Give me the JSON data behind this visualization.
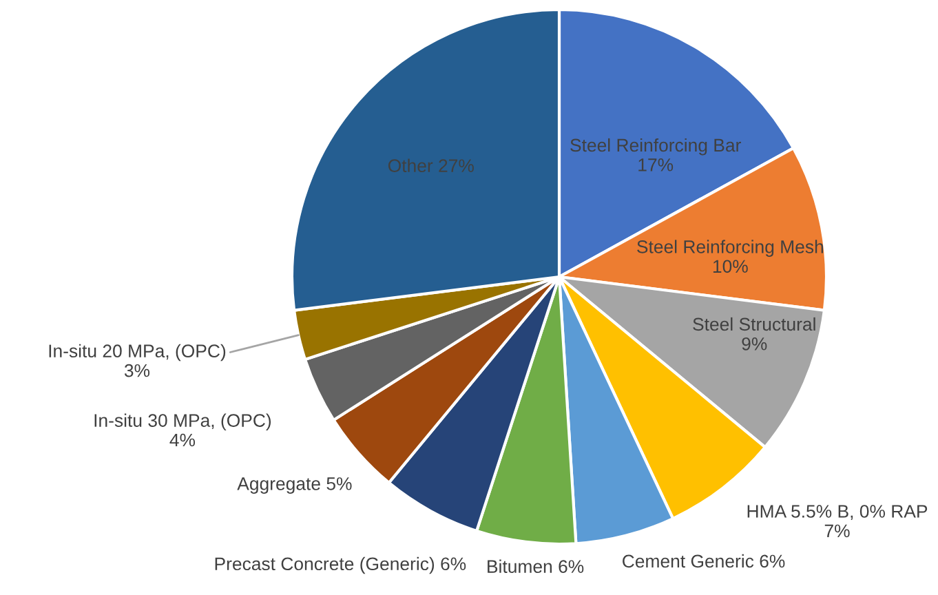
{
  "chart_data": {
    "type": "pie",
    "categories": [
      "Steel Reinforcing Bar",
      "Steel Reinforcing Mesh",
      "Steel Structural",
      "HMA 5.5% B, 0% RAP",
      "Cement Generic",
      "Bitumen",
      "Precast Concrete (Generic)",
      "Aggregate",
      "In-situ 30 MPa, (OPC)",
      "In-situ 20 MPa, (OPC)",
      "Other"
    ],
    "values": [
      17,
      10,
      9,
      7,
      6,
      6,
      6,
      5,
      4,
      3,
      27
    ],
    "value_labels": [
      "17%",
      "10%",
      "9%",
      "7%",
      "6%",
      "6%",
      "6%",
      "5%",
      "4%",
      "3%",
      "27%"
    ],
    "colors": [
      "#4472c4",
      "#ed7d31",
      "#a5a5a5",
      "#ffc000",
      "#5b9bd5",
      "#70ad47",
      "#264478",
      "#9e480e",
      "#636363",
      "#997300",
      "#255e91"
    ]
  }
}
